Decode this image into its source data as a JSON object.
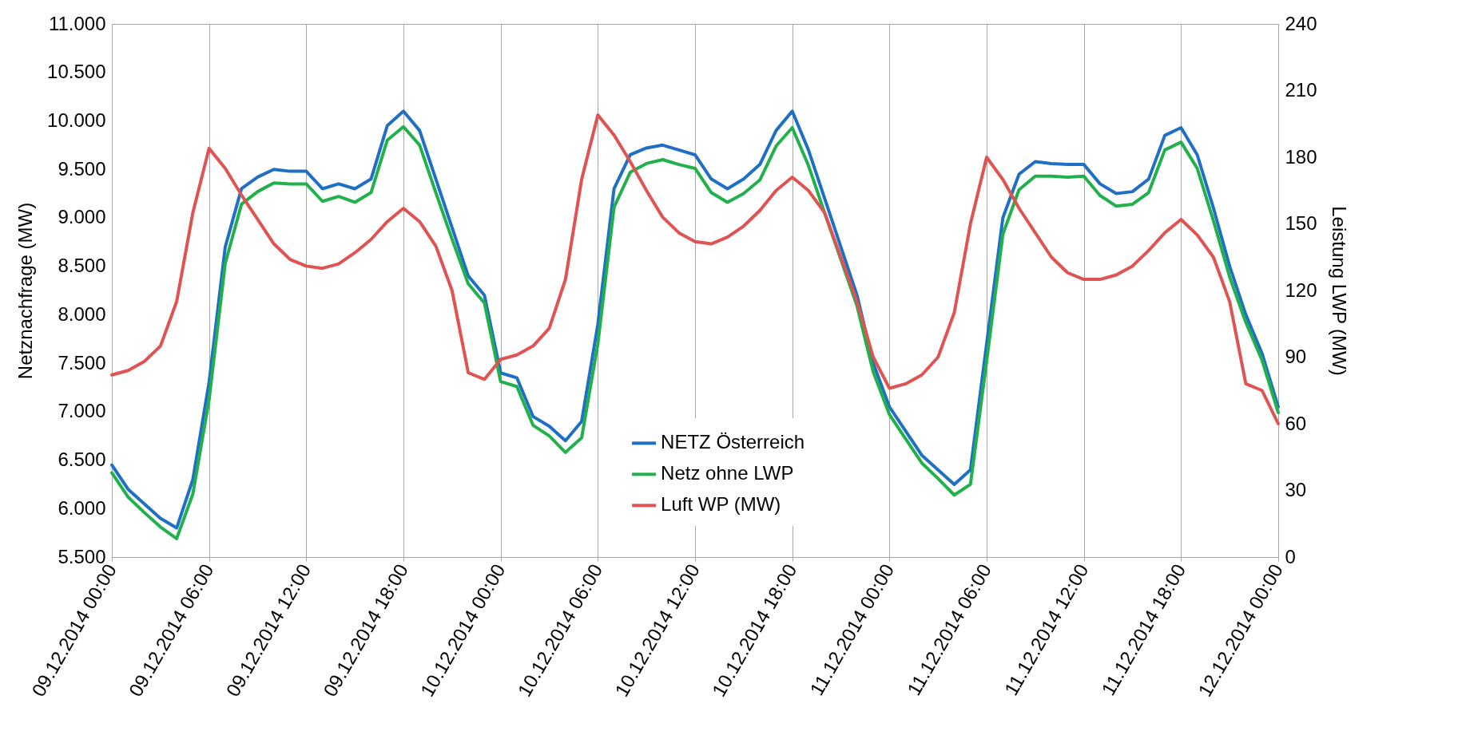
{
  "chart_data": {
    "type": "line",
    "ylabel": "Netznachfrage (MW)",
    "y2label": "Leistung LWP (MW)",
    "x": [
      "2014-12-09T00:00",
      "2014-12-09T01:00",
      "2014-12-09T02:00",
      "2014-12-09T03:00",
      "2014-12-09T04:00",
      "2014-12-09T05:00",
      "2014-12-09T06:00",
      "2014-12-09T07:00",
      "2014-12-09T08:00",
      "2014-12-09T09:00",
      "2014-12-09T10:00",
      "2014-12-09T11:00",
      "2014-12-09T12:00",
      "2014-12-09T13:00",
      "2014-12-09T14:00",
      "2014-12-09T15:00",
      "2014-12-09T16:00",
      "2014-12-09T17:00",
      "2014-12-09T18:00",
      "2014-12-09T19:00",
      "2014-12-09T20:00",
      "2014-12-09T21:00",
      "2014-12-09T22:00",
      "2014-12-09T23:00",
      "2014-12-10T00:00",
      "2014-12-10T01:00",
      "2014-12-10T02:00",
      "2014-12-10T03:00",
      "2014-12-10T04:00",
      "2014-12-10T05:00",
      "2014-12-10T06:00",
      "2014-12-10T07:00",
      "2014-12-10T08:00",
      "2014-12-10T09:00",
      "2014-12-10T10:00",
      "2014-12-10T11:00",
      "2014-12-10T12:00",
      "2014-12-10T13:00",
      "2014-12-10T14:00",
      "2014-12-10T15:00",
      "2014-12-10T16:00",
      "2014-12-10T17:00",
      "2014-12-10T18:00",
      "2014-12-10T19:00",
      "2014-12-10T20:00",
      "2014-12-10T21:00",
      "2014-12-10T22:00",
      "2014-12-10T23:00",
      "2014-12-11T00:00",
      "2014-12-11T01:00",
      "2014-12-11T02:00",
      "2014-12-11T03:00",
      "2014-12-11T04:00",
      "2014-12-11T05:00",
      "2014-12-11T06:00",
      "2014-12-11T07:00",
      "2014-12-11T08:00",
      "2014-12-11T09:00",
      "2014-12-11T10:00",
      "2014-12-11T11:00",
      "2014-12-11T12:00",
      "2014-12-11T13:00",
      "2014-12-11T14:00",
      "2014-12-11T15:00",
      "2014-12-11T16:00",
      "2014-12-11T17:00",
      "2014-12-11T18:00",
      "2014-12-11T19:00",
      "2014-12-11T20:00",
      "2014-12-11T21:00",
      "2014-12-11T22:00",
      "2014-12-11T23:00",
      "2014-12-12T00:00"
    ],
    "series": [
      {
        "name": "NETZ Österreich",
        "color": "#1f6fc5",
        "values": [
          6450,
          6200,
          6050,
          5900,
          5800,
          6300,
          7300,
          8700,
          9300,
          9420,
          9500,
          9480,
          9480,
          9300,
          9350,
          9300,
          9400,
          9950,
          10100,
          9900,
          9400,
          8900,
          8400,
          8200,
          7400,
          7350,
          6950,
          6850,
          6700,
          6900,
          7900,
          9300,
          9650,
          9720,
          9750,
          9700,
          9650,
          9400,
          9300,
          9400,
          9550,
          9900,
          10100,
          9700,
          9200,
          8700,
          8200,
          7500,
          7050,
          6800,
          6550,
          6400,
          6250,
          6400,
          7700,
          9000,
          9450,
          9580,
          9560,
          9550,
          9550,
          9350,
          9250,
          9270,
          9400,
          9850,
          9930,
          9650,
          9100,
          8500,
          8000,
          7600,
          7050
        ]
      },
      {
        "name": "Netz ohne LWP",
        "color": "#21b04b",
        "values": [
          6370,
          6120,
          5960,
          5810,
          5690,
          6150,
          7120,
          8530,
          9140,
          9270,
          9360,
          9350,
          9350,
          9170,
          9220,
          9160,
          9260,
          9800,
          9940,
          9750,
          9260,
          8780,
          8320,
          8120,
          7310,
          7260,
          6860,
          6750,
          6580,
          6730,
          7700,
          9110,
          9470,
          9560,
          9600,
          9550,
          9510,
          9260,
          9160,
          9250,
          9390,
          9740,
          9930,
          9540,
          9050,
          8570,
          8090,
          7410,
          6970,
          6720,
          6470,
          6310,
          6140,
          6250,
          7520,
          8830,
          9290,
          9430,
          9430,
          9420,
          9430,
          9230,
          9120,
          9140,
          9260,
          9700,
          9780,
          9510,
          8970,
          8390,
          7920,
          7530,
          6990
        ]
      },
      {
        "name": "Luft WP (MW)",
        "color": "#e05353",
        "axis": "y2",
        "values": [
          82,
          84,
          88,
          95,
          115,
          155,
          184,
          175,
          163,
          152,
          141,
          134,
          131,
          130,
          132,
          137,
          143,
          151,
          157,
          151,
          140,
          120,
          83,
          80,
          89,
          91,
          95,
          103,
          125,
          170,
          199,
          190,
          178,
          165,
          153,
          146,
          142,
          141,
          144,
          149,
          156,
          165,
          171,
          165,
          155,
          135,
          115,
          90,
          76,
          78,
          82,
          90,
          110,
          150,
          180,
          170,
          157,
          146,
          135,
          128,
          125,
          125,
          127,
          131,
          138,
          146,
          152,
          145,
          135,
          115,
          78,
          75,
          60
        ]
      }
    ],
    "xlim": [
      "2014-12-09T00:00",
      "2014-12-12T00:00"
    ],
    "xticks": [
      {
        "value": "2014-12-09T00:00",
        "label": "09.12.2014 00:00"
      },
      {
        "value": "2014-12-09T06:00",
        "label": "09.12.2014 06:00"
      },
      {
        "value": "2014-12-09T12:00",
        "label": "09.12.2014 12:00"
      },
      {
        "value": "2014-12-09T18:00",
        "label": "09.12.2014 18:00"
      },
      {
        "value": "2014-12-10T00:00",
        "label": "10.12.2014 00:00"
      },
      {
        "value": "2014-12-10T06:00",
        "label": "10.12.2014 06:00"
      },
      {
        "value": "2014-12-10T12:00",
        "label": "10.12.2014 12:00"
      },
      {
        "value": "2014-12-10T18:00",
        "label": "10.12.2014 18:00"
      },
      {
        "value": "2014-12-11T00:00",
        "label": "11.12.2014 00:00"
      },
      {
        "value": "2014-12-11T06:00",
        "label": "11.12.2014 06:00"
      },
      {
        "value": "2014-12-11T12:00",
        "label": "11.12.2014 12:00"
      },
      {
        "value": "2014-12-11T18:00",
        "label": "11.12.2014 18:00"
      },
      {
        "value": "2014-12-12T00:00",
        "label": "12.12.2014 00:00"
      }
    ],
    "ylim": [
      5500,
      11000
    ],
    "yticks": [
      {
        "value": 5500,
        "label": "5.500"
      },
      {
        "value": 6000,
        "label": "6.000"
      },
      {
        "value": 6500,
        "label": "6.500"
      },
      {
        "value": 7000,
        "label": "7.000"
      },
      {
        "value": 7500,
        "label": "7.500"
      },
      {
        "value": 8000,
        "label": "8.000"
      },
      {
        "value": 8500,
        "label": "8.500"
      },
      {
        "value": 9000,
        "label": "9.000"
      },
      {
        "value": 9500,
        "label": "9.500"
      },
      {
        "value": 10000,
        "label": "10.000"
      },
      {
        "value": 10500,
        "label": "10.500"
      },
      {
        "value": 11000,
        "label": "11.000"
      }
    ],
    "y2lim": [
      0,
      240
    ],
    "y2ticks": [
      0,
      30,
      60,
      90,
      120,
      150,
      180,
      210,
      240
    ],
    "grid": "x",
    "legend": "bottom"
  }
}
